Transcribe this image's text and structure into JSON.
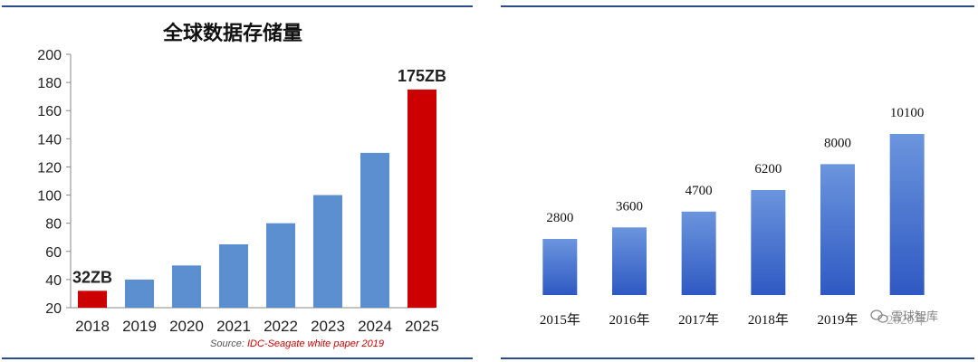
{
  "colors": {
    "rule": "#2b4c8c",
    "bar_blue": "#5b8fd0",
    "bar_red": "#cc0000",
    "bar_grad_top": "#6b95dd",
    "bar_grad_bottom": "#2f59c2",
    "source_label": "#555555",
    "source_text": "#cc0000"
  },
  "source": {
    "label": "Source: ",
    "text": "IDC-Seagate white paper 2019"
  },
  "watermark": {
    "text": "雪球智库",
    "icon": "wechat-icon"
  },
  "chart_data": [
    {
      "type": "bar",
      "title": "全球数据存储量",
      "categories": [
        "2018",
        "2019",
        "2020",
        "2021",
        "2022",
        "2023",
        "2024",
        "2025"
      ],
      "values": [
        32,
        40,
        50,
        65,
        80,
        100,
        130,
        175
      ],
      "ylim": [
        20,
        200
      ],
      "yticks": [
        20,
        40,
        60,
        80,
        100,
        120,
        140,
        160,
        180,
        200
      ],
      "highlight": [
        "2018",
        "2025"
      ],
      "data_labels": {
        "2018": "32ZB",
        "2025": "175ZB"
      },
      "grid": false
    },
    {
      "type": "bar",
      "title": "",
      "categories": [
        "2015年",
        "2016年",
        "2017年",
        "2018年",
        "2019年",
        "2020年"
      ],
      "values": [
        2800,
        3600,
        4700,
        6200,
        8000,
        10100
      ],
      "data_labels": [
        "2800",
        "3600",
        "4700",
        "6200",
        "8000",
        "10100"
      ],
      "grid": false
    }
  ]
}
